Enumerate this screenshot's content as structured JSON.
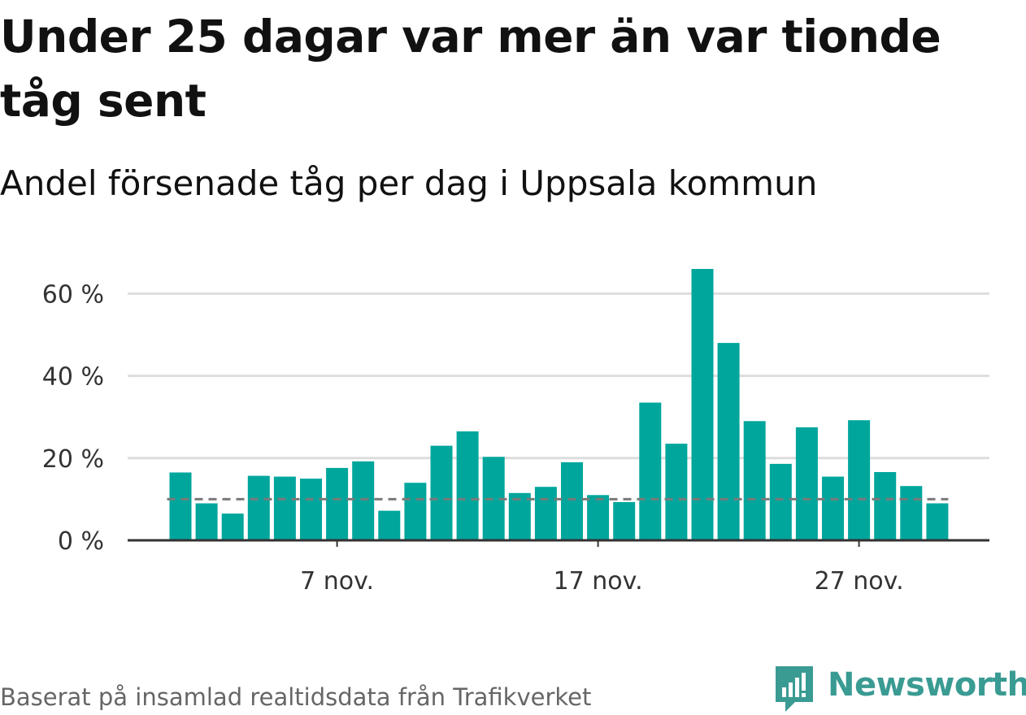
{
  "title": "Under 25 dagar var mer än var tionde tåg sent",
  "subtitle": "Andel försenade tåg per dag i Uppsala kommun",
  "source": "Baserat på insamlad realtidsdata från Trafikverket",
  "logo": {
    "name": "Newsworthy",
    "icon": "newsworthy-logo-icon",
    "color": "#3a9b93"
  },
  "colors": {
    "bar": "#00a69c",
    "reference_line": "#7a7a7a",
    "grid": "#dddddd",
    "axis": "#333333"
  },
  "chart_data": {
    "type": "bar",
    "x": [
      "2023-11-01",
      "2023-11-02",
      "2023-11-03",
      "2023-11-04",
      "2023-11-05",
      "2023-11-06",
      "2023-11-07",
      "2023-11-08",
      "2023-11-09",
      "2023-11-10",
      "2023-11-11",
      "2023-11-12",
      "2023-11-13",
      "2023-11-14",
      "2023-11-15",
      "2023-11-16",
      "2023-11-17",
      "2023-11-18",
      "2023-11-19",
      "2023-11-20",
      "2023-11-21",
      "2023-11-22",
      "2023-11-23",
      "2023-11-24",
      "2023-11-25",
      "2023-11-26",
      "2023-11-27",
      "2023-11-28",
      "2023-11-29",
      "2023-11-30"
    ],
    "values": [
      16.5,
      9,
      6.5,
      15.7,
      15.5,
      15,
      17.6,
      19.2,
      7.2,
      14,
      23,
      26.5,
      20.3,
      11.5,
      13,
      19,
      11,
      9.3,
      33.5,
      23.5,
      66,
      48,
      29,
      18.6,
      27.5,
      15.5,
      29.2,
      16.6,
      13.2,
      9
    ],
    "reference_line": 10,
    "xticks": [
      {
        "date": "2023-11-07",
        "label": "7 nov."
      },
      {
        "date": "2023-11-17",
        "label": "17 nov."
      },
      {
        "date": "2023-11-27",
        "label": "27 nov."
      }
    ],
    "yticks": [
      {
        "value": 0,
        "label": "0 %"
      },
      {
        "value": 20,
        "label": "20 %"
      },
      {
        "value": 40,
        "label": "40 %"
      },
      {
        "value": 60,
        "label": "60 %"
      }
    ],
    "ylim": [
      0,
      70
    ],
    "grid": true,
    "xlabel": "",
    "ylabel": ""
  }
}
